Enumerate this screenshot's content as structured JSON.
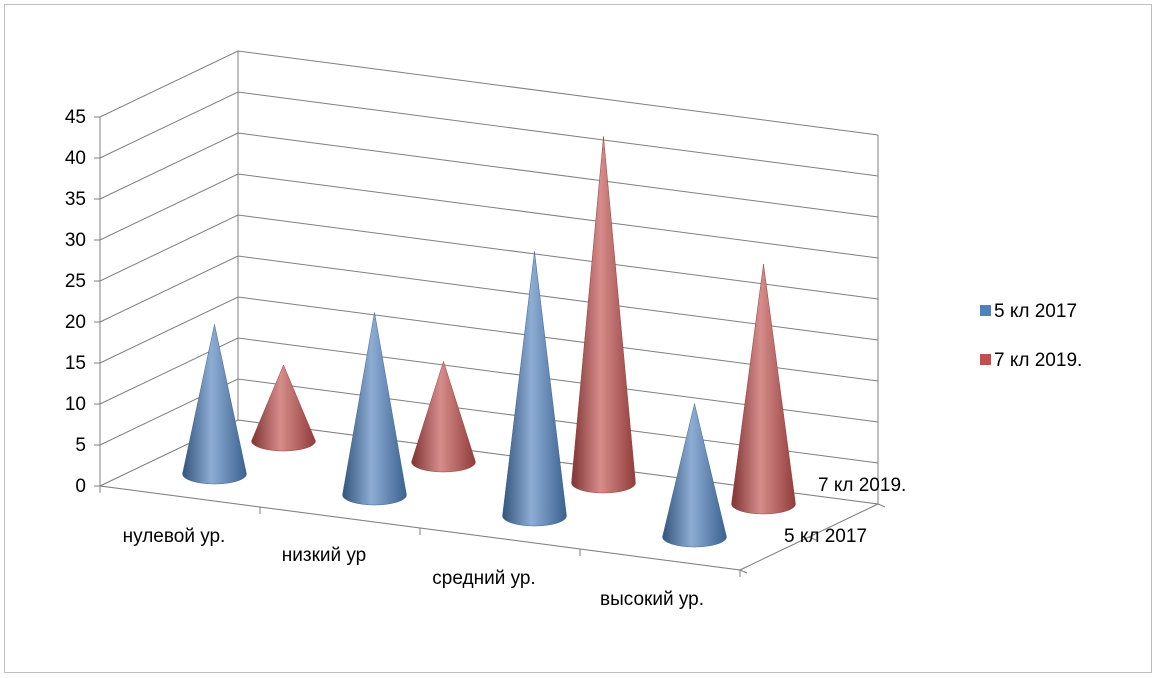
{
  "chart_data": {
    "type": "bar",
    "shape": "3d-cone",
    "categories": [
      "нулевой ур.",
      "низкий ур",
      "средний ур.",
      "высокий ур."
    ],
    "series": [
      {
        "name": "5 кл 2017",
        "values": [
          19,
          23,
          33,
          17
        ],
        "color": "#4f81bd"
      },
      {
        "name": "7 кл 2019.",
        "values": [
          10,
          13,
          43,
          30
        ],
        "color": "#c0504d"
      }
    ],
    "depth_labels": [
      "7 кл 2019.",
      "5 кл 2017"
    ],
    "yticks": [
      "0",
      "5",
      "10",
      "15",
      "20",
      "25",
      "30",
      "35",
      "40",
      "45"
    ],
    "ylim": [
      0,
      45
    ],
    "grid": true,
    "legend": "right"
  }
}
